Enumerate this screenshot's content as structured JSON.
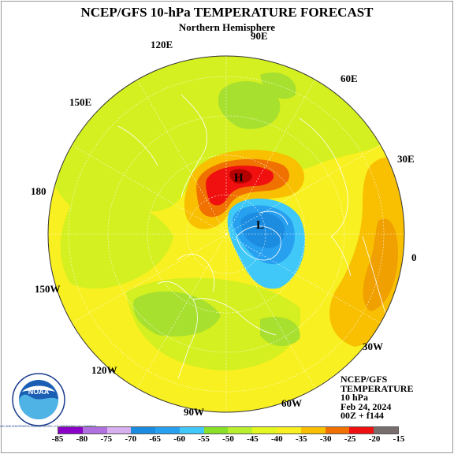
{
  "title": "NCEP/GFS 10-hPa TEMPERATURE FORECAST",
  "subtitle": "Northern Hemisphere",
  "longitude_labels": {
    "e90": "90E",
    "e120": "120E",
    "e60": "60E",
    "e150": "150E",
    "e30": "30E",
    "d180": "180",
    "d0": "0",
    "w150": "150W",
    "w30": "30W",
    "w120": "120W",
    "w60": "60W",
    "w90": "90W"
  },
  "markers": {
    "high": "H",
    "low": "L"
  },
  "info": {
    "line1": "NCEP/GFS",
    "line2": "TEMPERATURE",
    "line3": "10 hPa",
    "line4": "Feb 24, 2024",
    "line5": "00Z + f144"
  },
  "logo": {
    "text": "NOAA",
    "ring_text": "NATIONAL OCEANIC AND ATMOSPHERIC ADMINISTRATION • U.S. DEPARTMENT OF COMMERCE"
  },
  "colorbar": {
    "labels": [
      "-85",
      "-80",
      "-75",
      "-70",
      "-65",
      "-60",
      "-55",
      "-50",
      "-45",
      "-40",
      "-35",
      "-30",
      "-25",
      "-20",
      "-15"
    ],
    "colors": [
      "#8a00c8",
      "#b070e0",
      "#d8b0f0",
      "#1c8ce0",
      "#28a0f0",
      "#40c8f8",
      "#88e028",
      "#b8f030",
      "#e4f820",
      "#f8f020",
      "#f8c000",
      "#f07000",
      "#f01010",
      "#786e6e"
    ]
  },
  "field_colors": {
    "yellow": "#f8f020",
    "light_yellow": "#fafa40",
    "yellowgreen": "#d4f020",
    "green": "#a8e030",
    "orange": "#f8c000",
    "red_orange": "#f07000",
    "red": "#f01010",
    "dark_red": "#c80000",
    "blue_light": "#40c8f8",
    "blue": "#28a0f0",
    "blue_dark": "#1c8ce0"
  }
}
